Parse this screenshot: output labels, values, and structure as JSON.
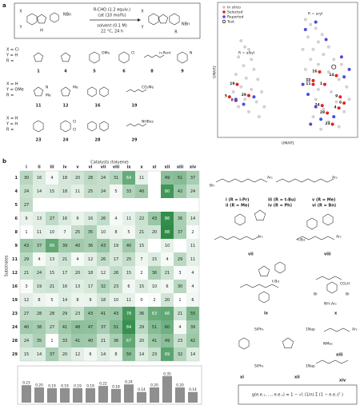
{
  "panel_labels": [
    "a",
    "b"
  ],
  "reaction": {
    "reagents": [
      "R-CHO (1.2 equiv.)",
      "cat (10 mol%)",
      "solvent (0.1 M)",
      "22 °C, 24 h"
    ],
    "atoms": [
      "X",
      "Y",
      "NBn",
      "H",
      "X",
      "Y",
      "NBn",
      "R"
    ]
  },
  "substrates": {
    "groups": [
      {
        "substituents": [
          "X = Cl",
          "Y = H",
          "R ="
        ],
        "items": [
          {
            "id": "1"
          },
          {
            "id": "4"
          },
          {
            "id": "5",
            "text": [
              "OMe"
            ]
          },
          {
            "id": "6",
            "text": [
              "Cl"
            ]
          },
          {
            "id": "8",
            "text": [
              "n-Pent"
            ]
          },
          {
            "id": "9",
            "text": [
              "N"
            ]
          }
        ]
      },
      {
        "substituents": [
          "X = H",
          "Y = OMe",
          "R ="
        ],
        "items": [
          {
            "id": "11",
            "text": [
              "N",
              "Me"
            ]
          },
          {
            "id": "12",
            "text": [
              "Me"
            ]
          },
          {
            "id": "16"
          },
          {
            "id": "19",
            "text": [
              "CO₂Me"
            ]
          }
        ]
      },
      {
        "substituents": [
          "X = H",
          "Y = H",
          "R ="
        ],
        "items": [
          {
            "id": "23"
          },
          {
            "id": "24",
            "text": [
              "Cl",
              "Cl"
            ]
          },
          {
            "id": "28"
          },
          {
            "id": "29",
            "text": [
              "NHBoc"
            ]
          }
        ]
      }
    ]
  },
  "chart_data": [
    {
      "type": "scatter",
      "x_label": "UMAP1",
      "y_label": "UMAP2",
      "annotations": [
        "R = aryl",
        "R = alkyl"
      ],
      "xlim": [
        0,
        100
      ],
      "ylim": [
        0,
        100
      ],
      "legend": "upper left",
      "series": [
        {
          "name": "In silico",
          "color": "#c6c6c6",
          "x": [
            12,
            15,
            18,
            10,
            20,
            14,
            22,
            8,
            16,
            25,
            12,
            20,
            28,
            6,
            15,
            24,
            30,
            10,
            18,
            26,
            62,
            66,
            70,
            75,
            64,
            72,
            80,
            68,
            76,
            84,
            66,
            72,
            90,
            62,
            80,
            88,
            64,
            72,
            82,
            94,
            70,
            86,
            76,
            92,
            68,
            80,
            88,
            74,
            96,
            60
          ],
          "values": [
            75,
            70,
            68,
            62,
            60,
            55,
            52,
            48,
            45,
            44,
            38,
            36,
            34,
            34,
            28,
            26,
            22,
            22,
            18,
            14,
            92,
            88,
            85,
            80,
            78,
            74,
            70,
            68,
            64,
            60,
            60,
            56,
            56,
            52,
            50,
            44,
            44,
            36,
            34,
            38,
            28,
            26,
            20,
            18,
            14,
            10,
            6,
            4,
            28,
            68
          ]
        },
        {
          "name": "Selected",
          "color": "#e3241d",
          "x": [
            73,
            86,
            68,
            68,
            77,
            89,
            92,
            88,
            75,
            79,
            83,
            9,
            18,
            3,
            8
          ],
          "values": [
            50,
            47,
            43,
            40,
            40,
            30,
            25,
            21,
            23,
            17,
            8,
            40,
            31,
            30,
            27
          ],
          "point_labels": [
            "16",
            "14",
            "12",
            "11",
            "1",
            "9",
            "6",
            "4",
            "24",
            "28",
            "23",
            "19",
            "29",
            "5",
            "8"
          ]
        },
        {
          "name": "Reported",
          "color": "#4b4bde",
          "x": [
            8,
            14,
            22,
            62,
            70,
            78,
            90,
            64,
            70,
            74,
            84,
            66,
            92,
            60,
            96
          ],
          "values": [
            28,
            24,
            30,
            84,
            90,
            76,
            62,
            32,
            22,
            12,
            14,
            8,
            46,
            40,
            52
          ]
        },
        {
          "name": "Test",
          "color": "#222222",
          "x": [
            84
          ],
          "values": [
            54
          ]
        }
      ]
    },
    {
      "type": "heatmap",
      "title": "Catalysts (toluene)",
      "y_label": "Substrates",
      "colors": [
        "#ffffff",
        "#2e8b47"
      ],
      "categories": [
        "i",
        "ii",
        "iii",
        "iv",
        "v",
        "vi",
        "vii",
        "viii",
        "ix",
        "x",
        "xi",
        "xii",
        "xiii",
        "xiv"
      ],
      "rows": [
        "1",
        "4",
        "5",
        "6",
        "8",
        "9",
        "11",
        "12",
        "16",
        "19",
        "23",
        "24",
        "28",
        "29"
      ],
      "values": [
        [
          30,
          16,
          4,
          18,
          20,
          28,
          24,
          31,
          64,
          11,
          null,
          49,
          51,
          37
        ],
        [
          24,
          14,
          15,
          18,
          11,
          25,
          24,
          5,
          33,
          40,
          null,
          80,
          42,
          24
        ],
        [
          27,
          null,
          null,
          null,
          null,
          null,
          null,
          null,
          null,
          null,
          null,
          null,
          null,
          null
        ],
        [
          9,
          13,
          27,
          16,
          9,
          16,
          26,
          4,
          11,
          22,
          43,
          86,
          36,
          14
        ],
        [
          1,
          11,
          10,
          7,
          25,
          35,
          10,
          8,
          5,
          21,
          20,
          88,
          37,
          2
        ],
        [
          43,
          37,
          66,
          39,
          40,
          36,
          43,
          19,
          40,
          15,
          null,
          10,
          null,
          11
        ],
        [
          29,
          4,
          13,
          21,
          4,
          12,
          26,
          17,
          25,
          7,
          15,
          4,
          29,
          11
        ],
        [
          21,
          24,
          15,
          17,
          20,
          18,
          12,
          26,
          15,
          2,
          36,
          21,
          3,
          4
        ],
        [
          3,
          19,
          21,
          16,
          13,
          17,
          32,
          23,
          6,
          15,
          10,
          6,
          30,
          4
        ],
        [
          12,
          8,
          5,
          14,
          8,
          9,
          18,
          10,
          11,
          0,
          2,
          20,
          1,
          6
        ],
        [
          27,
          28,
          28,
          29,
          23,
          43,
          41,
          43,
          78,
          36,
          63,
          66,
          21,
          55
        ],
        [
          40,
          38,
          27,
          41,
          48,
          47,
          37,
          51,
          84,
          29,
          51,
          60,
          4,
          39
        ],
        [
          24,
          35,
          1,
          33,
          41,
          40,
          21,
          36,
          67,
          20,
          41,
          49,
          23,
          42
        ],
        [
          15,
          14,
          37,
          20,
          12,
          6,
          14,
          8,
          50,
          14,
          23,
          69,
          32,
          14
        ]
      ]
    },
    {
      "type": "bar",
      "color": "#8f8f8f",
      "ylim": [
        0,
        0.4
      ],
      "values": [
        0.23,
        0.2,
        0.19,
        0.19,
        0.19,
        0.19,
        0.22,
        0.18,
        0.24,
        0.14,
        0.2,
        0.35,
        0.2,
        0.14
      ],
      "value_labels": [
        "0.23",
        "0.20",
        "0.19",
        "0.19",
        "0.19",
        "0.19",
        "0.22",
        "0.18",
        "0.24",
        "0.14",
        "0.20",
        "0.35",
        "0.20",
        "0.14"
      ]
    }
  ],
  "catalysts": {
    "labels": [
      "i (R = i-Pr)",
      "ii (R = Me)",
      "iii (R = t-Bu)",
      "iv (R = Ph)",
      "v (R = Me)",
      "vi (R = Bn)",
      "vii",
      "viii",
      "ix",
      "x",
      "xi",
      "xii",
      "xiii",
      "xiv"
    ],
    "fragments": [
      "Bn",
      "Ar₂",
      "Ar₂",
      "Ar₂",
      "Ar₂",
      "t-Bu",
      "t-Bu",
      "Br",
      "Br",
      "CO₂H",
      "NH–Ar₂",
      "SiPh₃",
      "SiPh₃",
      "1Nap",
      "1Nap",
      "NMe₂",
      "Ar₂"
    ]
  },
  "formula": "g(e.e.₁, ..., e.e.ₙ) = 1 − √( (1/n) Σ (1 − e.e.ᵢ)² )"
}
